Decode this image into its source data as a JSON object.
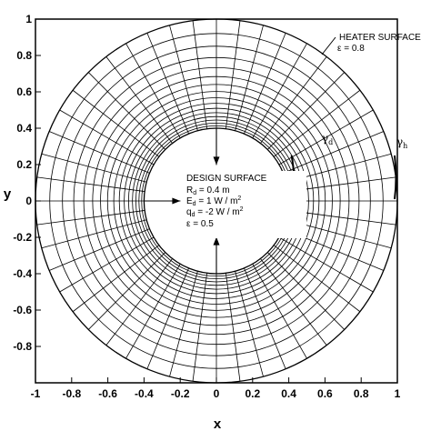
{
  "chart_data": {
    "type": "mesh",
    "xlabel": "x",
    "ylabel": "y",
    "xlim": [
      -1,
      1
    ],
    "ylim": [
      -1,
      1
    ],
    "xticks": [
      "-1",
      "-0.8",
      "-0.6",
      "-0.4",
      "-0.2",
      "0",
      "0.2",
      "0.4",
      "0.6",
      "0.8",
      "1"
    ],
    "yticks": [
      "1",
      "0.8",
      "0.6",
      "0.4",
      "0.2",
      "0",
      "-0.2",
      "-0.4",
      "-0.6",
      "-0.8"
    ],
    "inner_radius": 0.4,
    "outer_radius": 1.0,
    "radial_rows": 16,
    "angular_columns": 48,
    "heater_surface": {
      "label": "HEATER SURFACE",
      "emissivity": "ε = 0.8",
      "gamma_label": "γ",
      "gamma_sub": "h"
    },
    "design_surface": {
      "title": "DESIGN SURFACE",
      "r_line": "R",
      "r_sub": "d",
      "r_val": " = 0.4 m",
      "e_line": "E",
      "e_sub": "d",
      "e_val": " = 1    W / m",
      "e_sup": "2",
      "q_line": "q",
      "q_sub": "d",
      "q_val": " = -2  W / m",
      "q_sup": "2",
      "eps_line": "ε = 0.5",
      "gamma_label": "γ",
      "gamma_sub": "d"
    }
  }
}
